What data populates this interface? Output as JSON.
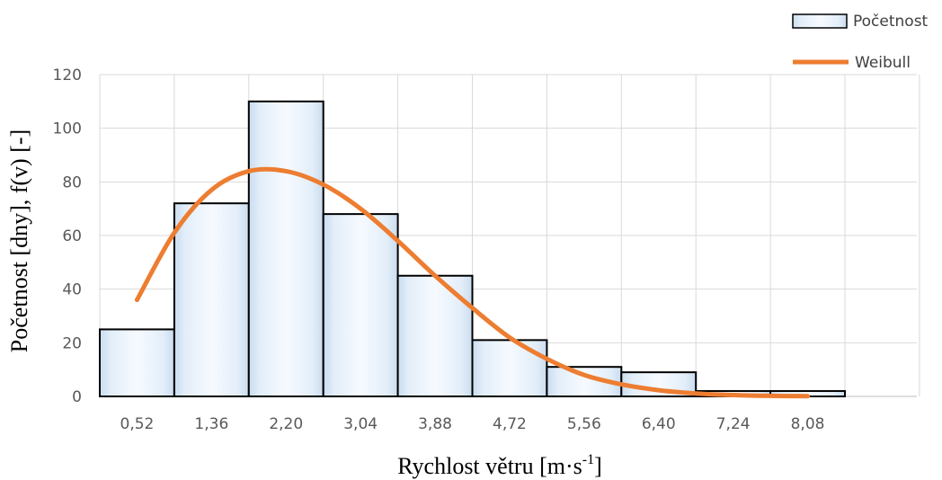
{
  "chart_data": {
    "type": "bar",
    "categories": [
      "0,52",
      "1,36",
      "2,20",
      "3,04",
      "3,88",
      "4,72",
      "5,56",
      "6,40",
      "7,24",
      "8,08",
      ""
    ],
    "series": [
      {
        "name": "Početnost",
        "type": "bar",
        "values": [
          25,
          72,
          110,
          68,
          45,
          21,
          11,
          9,
          2,
          2,
          0
        ]
      },
      {
        "name": "Weibull",
        "type": "line",
        "x": [
          0.52,
          0.94,
          1.36,
          1.78,
          2.2,
          2.62,
          3.04,
          3.46,
          3.88,
          4.3,
          4.72,
          5.14,
          5.56,
          5.98,
          6.4,
          6.82,
          7.24,
          7.66,
          8.08
        ],
        "values": [
          36,
          61,
          77,
          84,
          84,
          79,
          70,
          58,
          45,
          33,
          22,
          14,
          8,
          4.5,
          2.3,
          1.1,
          0.5,
          0.2,
          0.1
        ]
      }
    ],
    "xlabel_main": "Rychlost větru [m·s",
    "xlabel_sup": "-1",
    "xlabel_end": "]",
    "ylabel": "Početnost [dny], f(v) [-]",
    "yticks": [
      "0",
      "20",
      "40",
      "60",
      "80",
      "100",
      "120"
    ],
    "ylim": [
      0,
      120
    ],
    "grid": true,
    "legend": "top-right",
    "colors": {
      "bar_edge": "#f7fbff",
      "bar_center": "#c9dcef",
      "bar_stroke": "#000000",
      "line": "#ed7d31",
      "grid": "#d9d9d9"
    }
  }
}
